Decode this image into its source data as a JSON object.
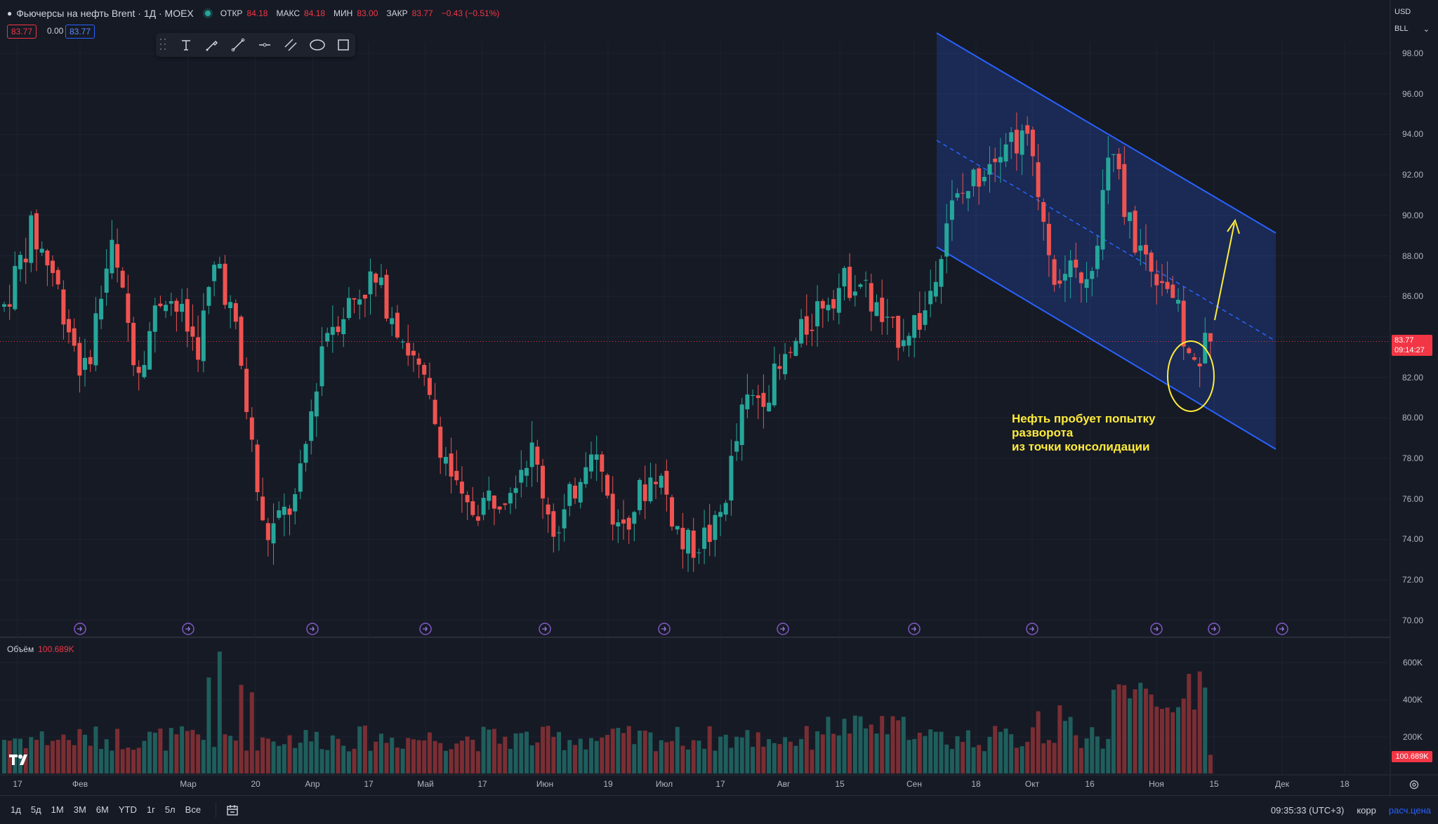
{
  "legend": {
    "title": "Фьючерсы на нефть Brent · 1Д · MOEX",
    "open_label": "ОТКР",
    "open": "84.18",
    "high_label": "МАКС",
    "high": "84.18",
    "low_label": "МИН",
    "low": "83.00",
    "close_label": "ЗАКР",
    "close": "83.77",
    "change": "−0.43 (−0.51%)",
    "bid": "83.77",
    "spread": "0.00",
    "ask": "83.77"
  },
  "scale": {
    "currency": "USD",
    "unit": "BLL"
  },
  "current_price": {
    "value": "83.77",
    "countdown": "09:14:27"
  },
  "volume_legend": {
    "label": "Объём",
    "value": "100.689K"
  },
  "volume_tag": "100.689K",
  "price_axis": [
    "98.00",
    "96.00",
    "94.00",
    "92.00",
    "90.00",
    "88.00",
    "86.00",
    "84.00",
    "82.00",
    "80.00",
    "78.00",
    "76.00",
    "74.00",
    "72.00",
    "70.00"
  ],
  "volume_axis": [
    "600K",
    "400K",
    "200K"
  ],
  "time_axis": [
    "17",
    "Фев",
    "Мар",
    "20",
    "Апр",
    "17",
    "Май",
    "17",
    "Июн",
    "19",
    "Июл",
    "17",
    "Авг",
    "15",
    "Сен",
    "18",
    "Окт",
    "16",
    "Ноя",
    "15",
    "Дек",
    "18"
  ],
  "annotation": {
    "line1": "Нефть пробует попытку",
    "line2": "разворота",
    "line3": "из точки консолидации"
  },
  "ranges": [
    "1д",
    "5д",
    "1М",
    "3М",
    "6М",
    "YTD",
    "1г",
    "5л",
    "Все"
  ],
  "bottom": {
    "clock": "09:35:33 (UTC+3)",
    "corr": "корр",
    "settle": "расч.цена"
  },
  "icons": {
    "drop": "drop-icon",
    "calendar": "calendar-range-icon",
    "gear": "settings-icon",
    "logo": "tradingview-logo"
  },
  "colors": {
    "up": "#26a69a",
    "down": "#ef5350",
    "channel": "#2962ff",
    "annotation": "#ffeb3b",
    "background": "#161a25"
  },
  "chart_data": {
    "type": "candlestick",
    "interval": "1Д",
    "ylim": [
      70,
      99
    ],
    "volume_ylim": [
      0,
      700000
    ],
    "candles": []
  }
}
